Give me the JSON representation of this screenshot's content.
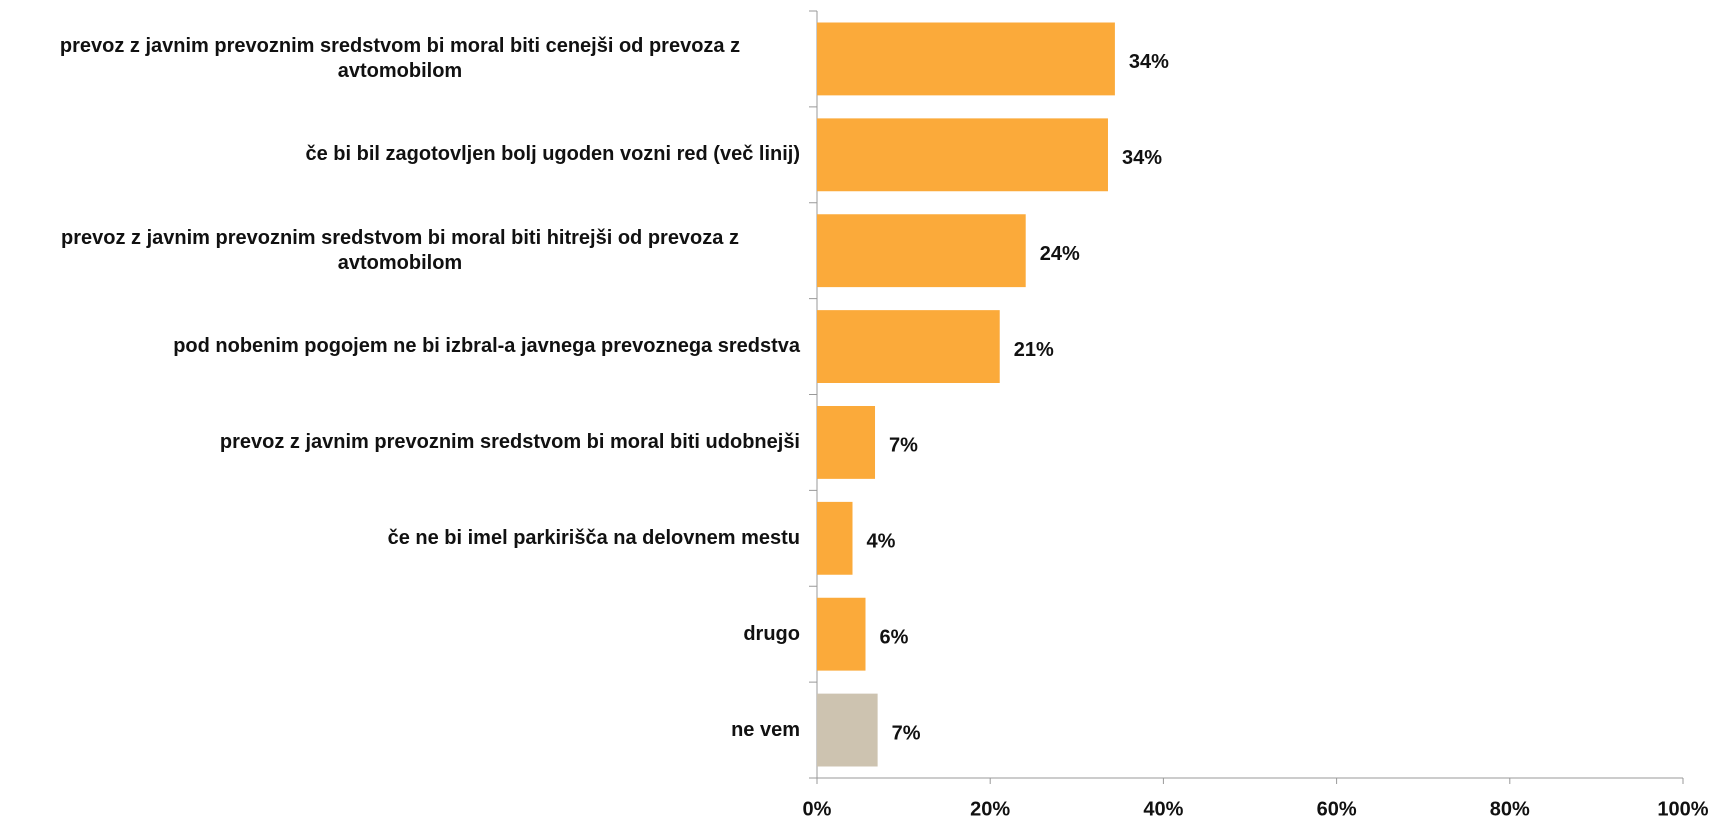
{
  "chart_data": {
    "type": "barh",
    "categories": [
      "prevoz z javnim prevoznim sredstvom bi moral biti cenejši od prevoza z avtomobilom",
      "če bi bil zagotovljen bolj ugoden vozni red (več linij)",
      "prevoz z javnim prevoznim sredstvom bi moral biti hitrejši od prevoza z avtomobilom",
      "pod nobenim pogojem ne bi izbral-a javnega prevoznega sredstva",
      "prevoz z javnim prevoznim sredstvom bi moral biti udobnejši",
      "če ne bi imel parkirišča na delovnem mestu",
      "drugo",
      "ne vem"
    ],
    "values": [
      34.4,
      33.6,
      24.1,
      21.1,
      6.7,
      4.1,
      5.6,
      7.0
    ],
    "value_labels": [
      "34%",
      "34%",
      "24%",
      "21%",
      "7%",
      "4%",
      "6%",
      "7%"
    ],
    "colors": [
      "#fbaa3a",
      "#fbaa3a",
      "#fbaa3a",
      "#fbaa3a",
      "#fbaa3a",
      "#fbaa3a",
      "#fbaa3a",
      "#cdc3b0"
    ],
    "xlim": [
      0,
      100
    ],
    "xticks": [
      {
        "value": 0,
        "label": "0%"
      },
      {
        "value": 20,
        "label": "20%"
      },
      {
        "value": 40,
        "label": "40%"
      },
      {
        "value": 60,
        "label": "60%"
      },
      {
        "value": 80,
        "label": "80%"
      },
      {
        "value": 100,
        "label": "100%"
      }
    ],
    "grid": false
  }
}
